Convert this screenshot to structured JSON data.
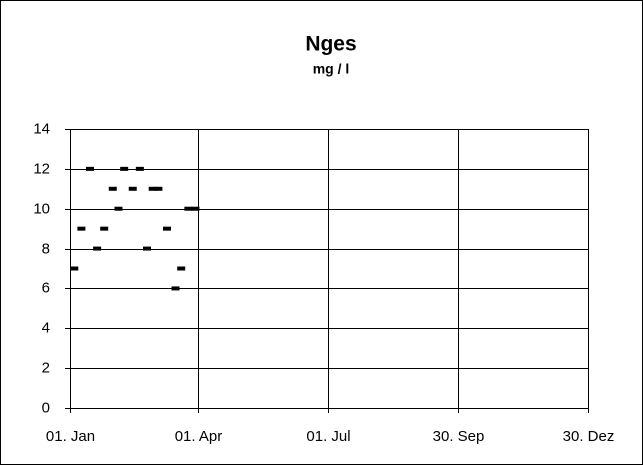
{
  "chart_data": {
    "type": "scatter",
    "title": "Nges",
    "subtitle": "mg / l",
    "x": [
      3,
      8,
      14,
      19,
      24,
      30,
      34,
      38,
      44,
      49,
      54,
      58,
      62,
      68,
      74,
      78,
      83,
      88
    ],
    "values": [
      7,
      9,
      12,
      8,
      9,
      11,
      10,
      12,
      11,
      12,
      8,
      11,
      11,
      9,
      6,
      7,
      10,
      10
    ],
    "color": "#000000",
    "xlim": [
      0,
      364
    ],
    "xticks": [
      {
        "value": 0,
        "label": "01. Jan"
      },
      {
        "value": 90,
        "label": "01. Apr"
      },
      {
        "value": 181,
        "label": "01. Jul"
      },
      {
        "value": 272,
        "label": "30. Sep"
      },
      {
        "value": 363,
        "label": "30. Dez"
      }
    ],
    "ylim": [
      0,
      14
    ],
    "yticks": [
      0,
      2,
      4,
      6,
      8,
      10,
      12,
      14
    ],
    "grid": true
  }
}
